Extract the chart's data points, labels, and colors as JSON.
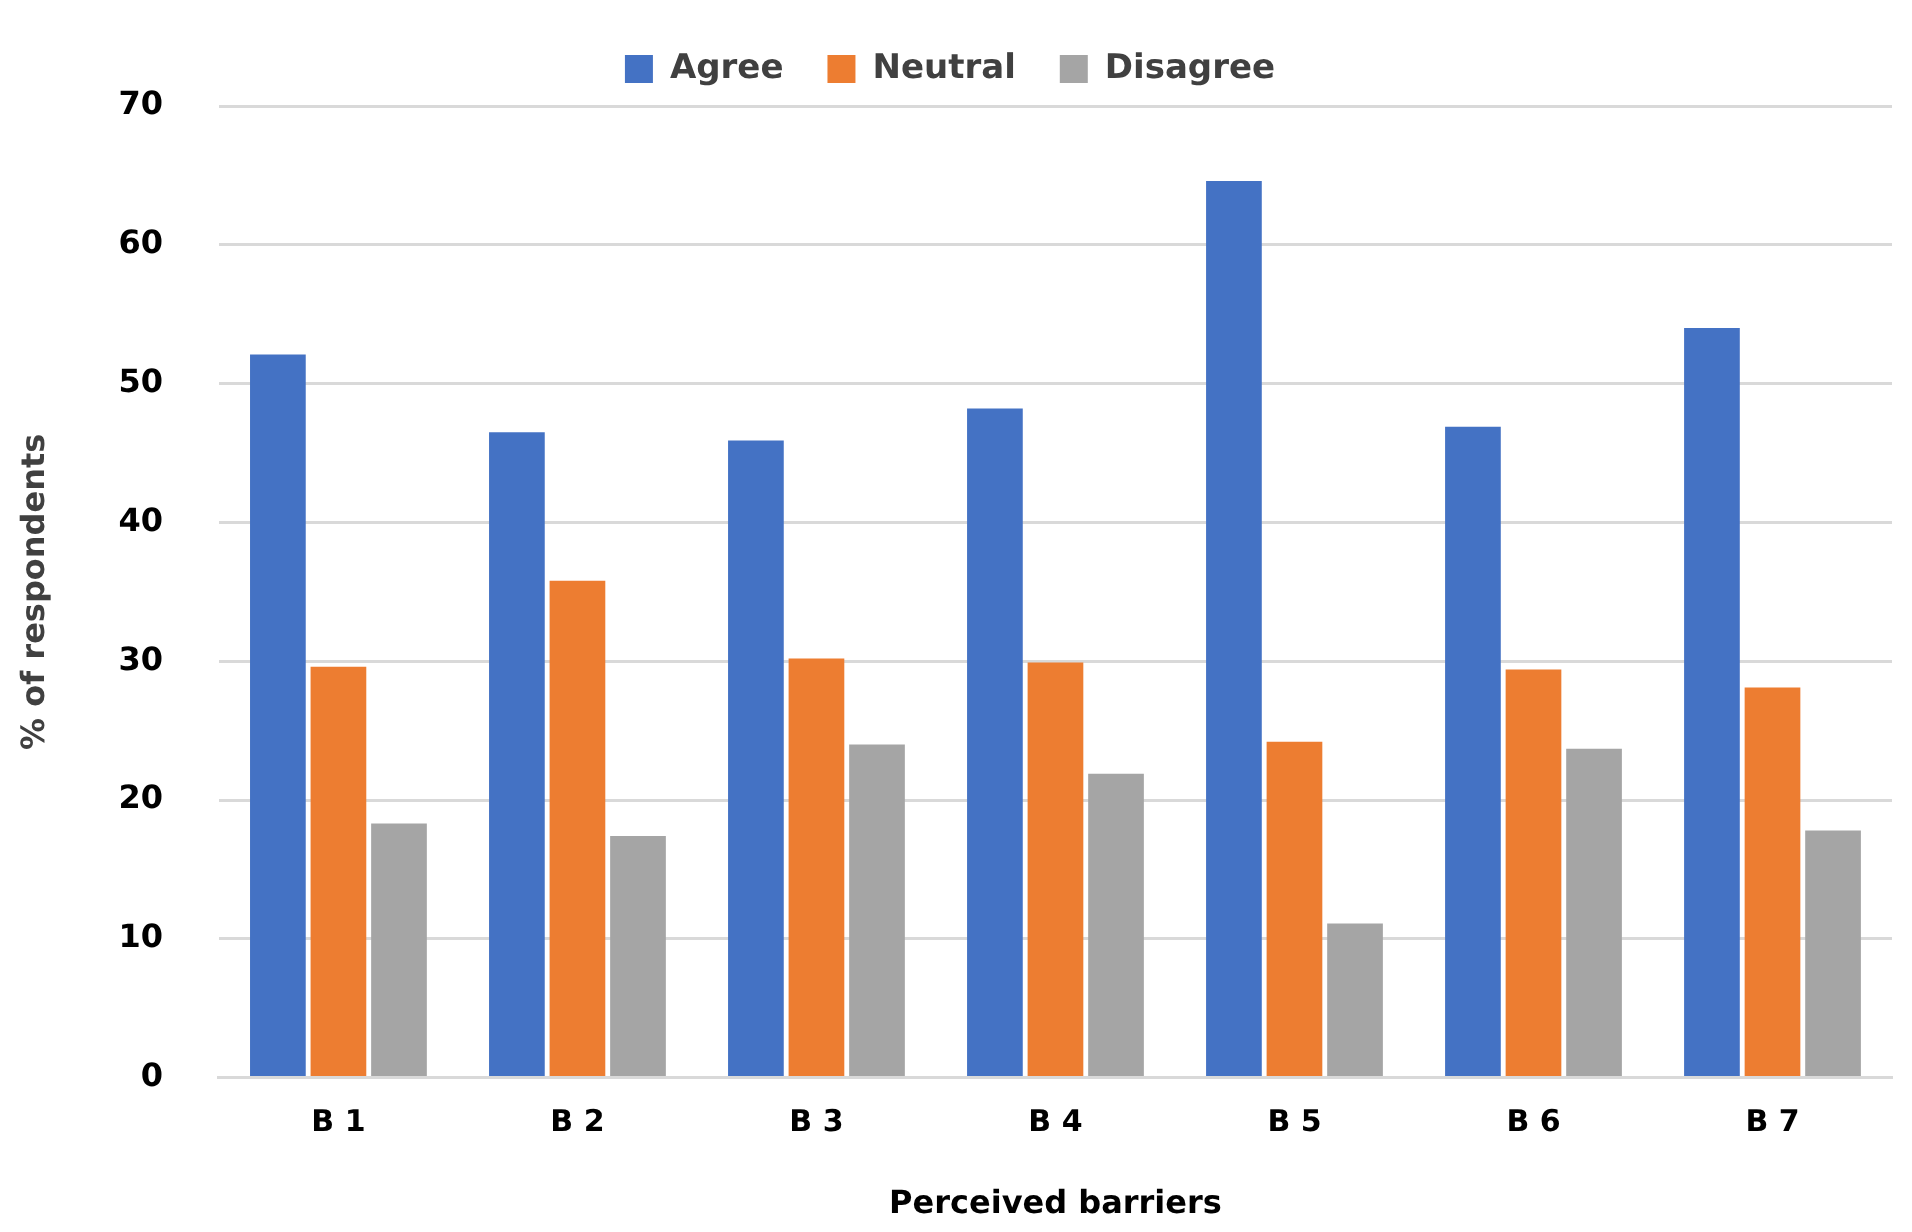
{
  "chart_data": {
    "type": "bar",
    "xlabel": "Perceived barriers",
    "ylabel": "% of respondents",
    "categories": [
      "B 1",
      "B 2",
      "B 3",
      "B 4",
      "B 5",
      "B 6",
      "B 7"
    ],
    "series": [
      {
        "name": "Agree",
        "color": "#4472c4",
        "values": [
          52.1,
          46.5,
          45.9,
          48.2,
          64.6,
          46.9,
          54.0
        ]
      },
      {
        "name": "Neutral",
        "color": "#ed7d31",
        "values": [
          29.6,
          35.8,
          30.2,
          29.9,
          24.2,
          29.4,
          28.1
        ]
      },
      {
        "name": "Disagree",
        "color": "#a5a5a5",
        "values": [
          18.3,
          17.4,
          24.0,
          21.9,
          11.1,
          23.7,
          17.8
        ]
      }
    ],
    "ylim": [
      0,
      70
    ],
    "yticks": [
      0,
      10,
      20,
      30,
      40,
      50,
      60,
      70
    ],
    "grid": "y",
    "legend": "top"
  }
}
